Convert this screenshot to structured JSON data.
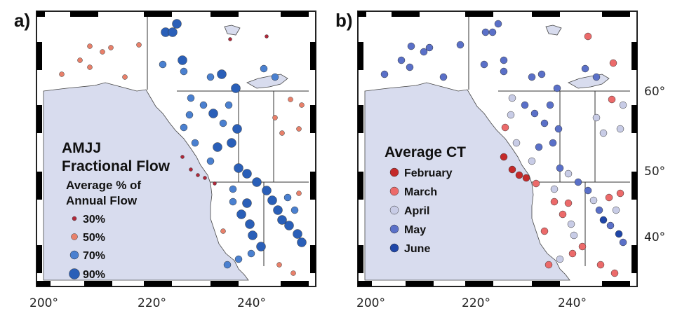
{
  "panels": [
    {
      "label": "a)",
      "legend": {
        "title_lines": [
          "AMJJ",
          "Fractional Flow"
        ],
        "subtitle_lines": [
          "Average % of",
          "Annual Flow"
        ],
        "items": [
          {
            "label": "30%",
            "color": "#b0283a",
            "value_pct": 30
          },
          {
            "label": "50%",
            "color": "#e8806a",
            "value_pct": 50
          },
          {
            "label": "70%",
            "color": "#4a80d0",
            "value_pct": 70
          },
          {
            "label": "90%",
            "color": "#2a5fb8",
            "value_pct": 90
          }
        ]
      }
    },
    {
      "label": "b)",
      "legend": {
        "title_lines": [
          "Average CT"
        ],
        "items": [
          {
            "label": "February",
            "color": "#c42a2a"
          },
          {
            "label": "March",
            "color": "#ec6a6a"
          },
          {
            "label": "April",
            "color": "#c8cce6"
          },
          {
            "label": "May",
            "color": "#5a70c8"
          },
          {
            "label": "June",
            "color": "#1f46a8"
          }
        ]
      }
    }
  ],
  "axes": {
    "lon_labels": [
      "200°",
      "220°",
      "240°"
    ],
    "lat_labels": [
      "60°",
      "50°",
      "40°"
    ]
  },
  "colors": {
    "ocean": "#d8dcee",
    "land": "#ffffff",
    "border": "#222222"
  }
}
